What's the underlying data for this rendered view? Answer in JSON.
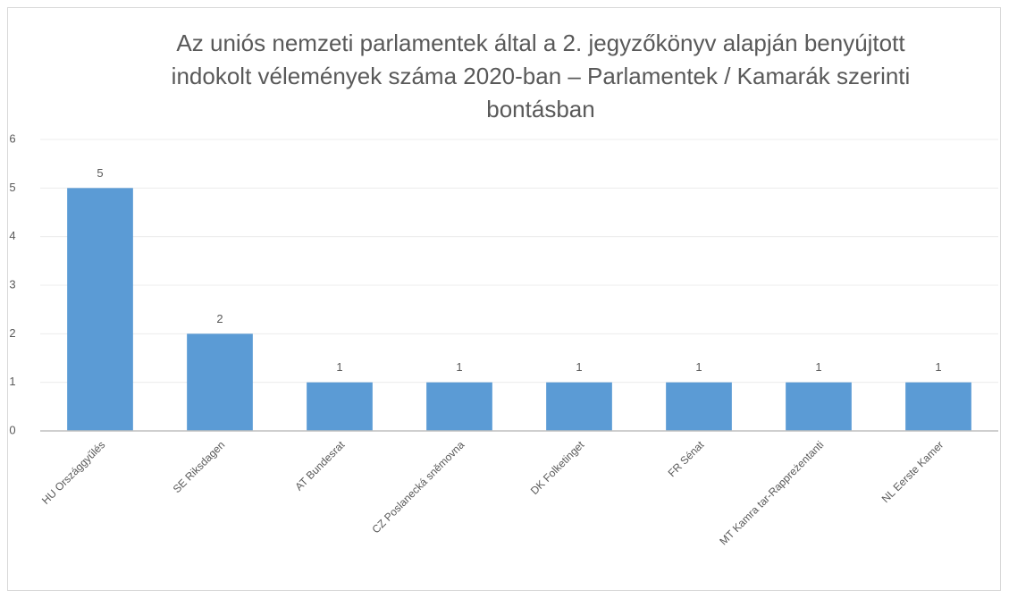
{
  "chart_data": {
    "type": "bar",
    "title": "Az uniós nemzeti parlamentek által a 2. jegyzőkönyv alapján benyújtott indokolt vélemények száma 2020-ban – Parlamentek / Kamarák szerinti bontásban",
    "categories": [
      "HU Országgyűlés",
      "SE Riksdagen",
      "AT Bundesrat",
      "CZ Poslanecká sněmovna",
      "DK Folketinget",
      "FR Sénat",
      "MT Kamra tar-Rappreżentanti",
      "NL Eerste Kamer"
    ],
    "values": [
      5,
      2,
      1,
      1,
      1,
      1,
      1,
      1
    ],
    "color": "#5b9bd5",
    "ylim": [
      0,
      6
    ],
    "yticks": [
      0,
      1,
      2,
      3,
      4,
      5,
      6
    ],
    "grid": true
  }
}
